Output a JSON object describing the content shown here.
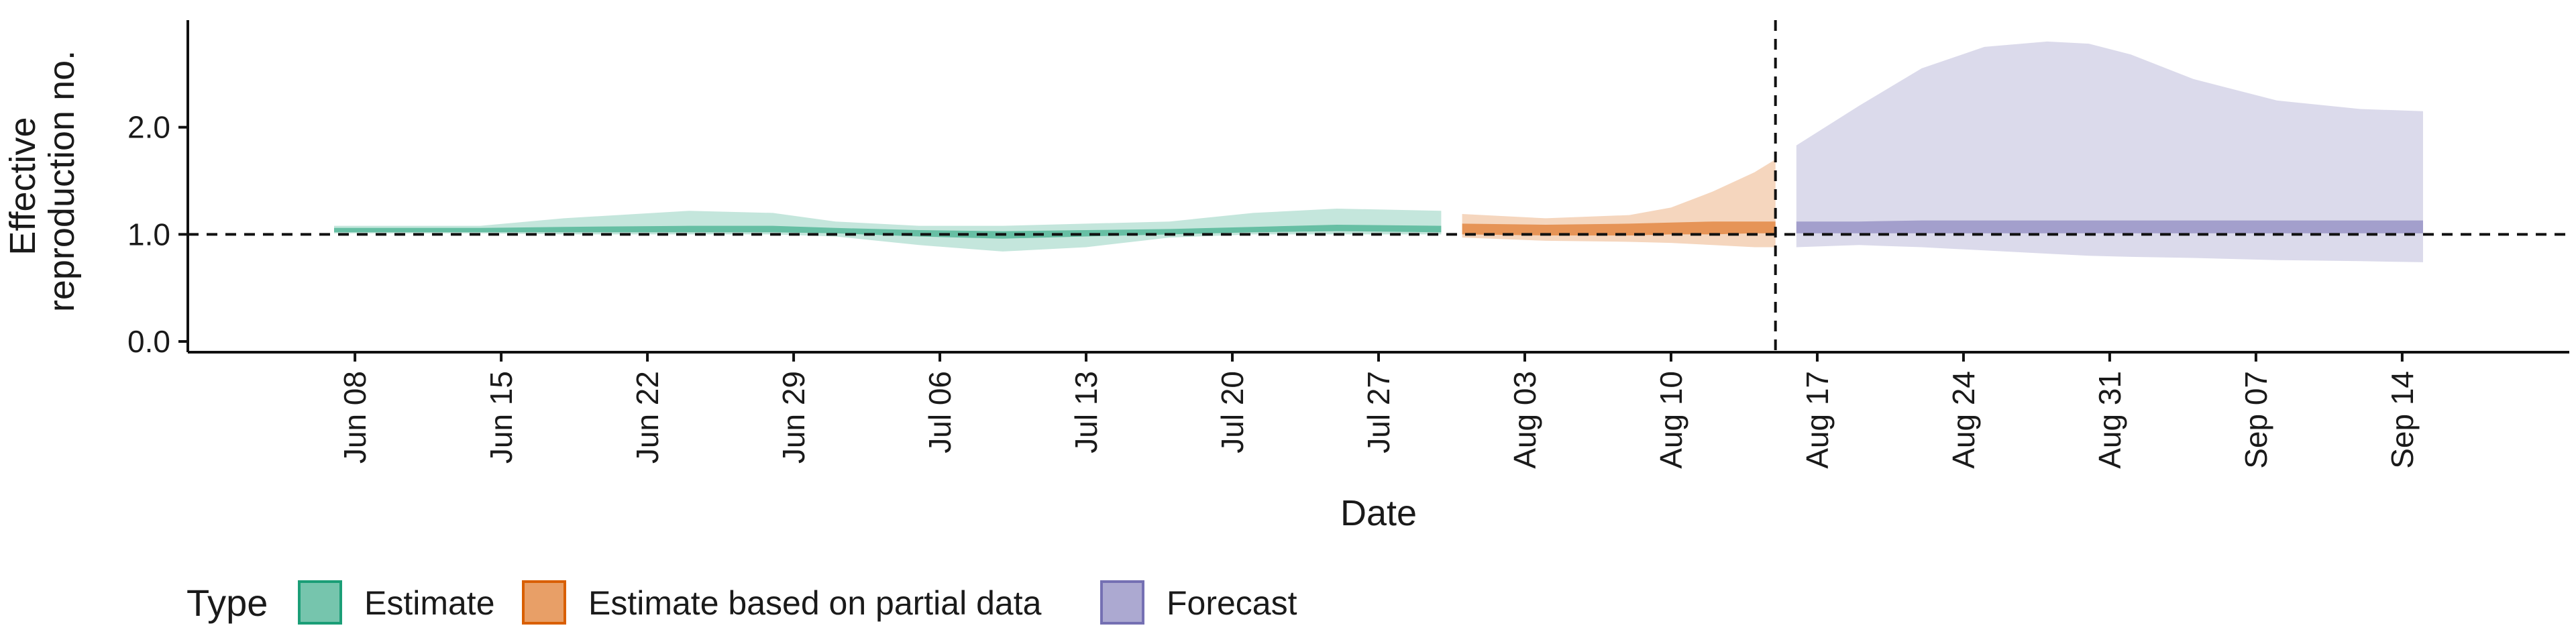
{
  "chart_data": {
    "type": "area",
    "xlabel": "Date",
    "ylabel_lines": [
      "Effective",
      "reproduction no."
    ],
    "ylim": [
      -0.1,
      3.0
    ],
    "yticks": [
      0.0,
      1.0,
      2.0
    ],
    "ytick_labels": [
      "0.0",
      "1.0",
      "2.0"
    ],
    "xlim": [
      "2020-05-31",
      "2020-09-22"
    ],
    "xticks": [
      "2020-06-08",
      "2020-06-15",
      "2020-06-22",
      "2020-06-29",
      "2020-07-06",
      "2020-07-13",
      "2020-07-20",
      "2020-07-27",
      "2020-08-03",
      "2020-08-10",
      "2020-08-17",
      "2020-08-24",
      "2020-08-31",
      "2020-09-07",
      "2020-09-14"
    ],
    "xtick_labels": [
      "Jun 08",
      "Jun 15",
      "Jun 22",
      "Jun 29",
      "Jul 06",
      "Jul 13",
      "Jul 20",
      "Jul 27",
      "Aug 03",
      "Aug 10",
      "Aug 17",
      "Aug 24",
      "Aug 31",
      "Sep 07",
      "Sep 14"
    ],
    "reference_line_y": 1.0,
    "vertical_line_x": "2020-08-15",
    "grid": false,
    "legend": {
      "title": "Type",
      "position": "bottom-left"
    },
    "series": [
      {
        "name": "Estimate",
        "color": "#1b9e77",
        "x": [
          "2020-06-07",
          "2020-06-14",
          "2020-06-18",
          "2020-06-24",
          "2020-06-28",
          "2020-07-01",
          "2020-07-05",
          "2020-07-09",
          "2020-07-13",
          "2020-07-17",
          "2020-07-21",
          "2020-07-25",
          "2020-07-30"
        ],
        "outer_upper": [
          1.08,
          1.08,
          1.15,
          1.22,
          1.2,
          1.12,
          1.08,
          1.08,
          1.1,
          1.12,
          1.2,
          1.24,
          1.22
        ],
        "outer_lower": [
          1.01,
          1.01,
          1.0,
          1.0,
          1.0,
          0.98,
          0.9,
          0.84,
          0.88,
          0.97,
          1.0,
          1.0,
          1.0
        ],
        "inner_upper": [
          1.06,
          1.06,
          1.07,
          1.08,
          1.08,
          1.06,
          1.04,
          1.03,
          1.04,
          1.05,
          1.07,
          1.09,
          1.08
        ],
        "inner_lower": [
          1.02,
          1.02,
          1.02,
          1.02,
          1.02,
          1.01,
          0.98,
          0.96,
          0.98,
          1.0,
          1.02,
          1.03,
          1.02
        ]
      },
      {
        "name": "Estimate based on partial data",
        "color": "#d95f02",
        "x": [
          "2020-07-31",
          "2020-08-04",
          "2020-08-08",
          "2020-08-10",
          "2020-08-12",
          "2020-08-14",
          "2020-08-15"
        ],
        "outer_upper": [
          1.19,
          1.15,
          1.18,
          1.25,
          1.4,
          1.58,
          1.7
        ],
        "outer_lower": [
          0.97,
          0.94,
          0.93,
          0.92,
          0.9,
          0.88,
          0.88
        ],
        "inner_upper": [
          1.1,
          1.09,
          1.1,
          1.11,
          1.12,
          1.12,
          1.12
        ],
        "inner_lower": [
          1.0,
          0.99,
          0.99,
          1.0,
          1.0,
          1.01,
          1.01
        ]
      },
      {
        "name": "Forecast",
        "color": "#7570b3",
        "x": [
          "2020-08-16",
          "2020-08-19",
          "2020-08-22",
          "2020-08-25",
          "2020-08-28",
          "2020-08-30",
          "2020-09-01",
          "2020-09-04",
          "2020-09-08",
          "2020-09-12",
          "2020-09-15"
        ],
        "outer_upper": [
          1.83,
          2.2,
          2.55,
          2.75,
          2.8,
          2.78,
          2.68,
          2.45,
          2.25,
          2.17,
          2.15
        ],
        "outer_lower": [
          0.88,
          0.9,
          0.88,
          0.85,
          0.82,
          0.8,
          0.79,
          0.78,
          0.76,
          0.75,
          0.74
        ],
        "inner_upper": [
          1.12,
          1.12,
          1.13,
          1.13,
          1.13,
          1.13,
          1.13,
          1.13,
          1.13,
          1.13,
          1.13
        ],
        "inner_lower": [
          1.01,
          1.01,
          1.01,
          1.01,
          1.01,
          1.01,
          1.01,
          1.01,
          1.01,
          1.01,
          1.01
        ]
      }
    ]
  }
}
